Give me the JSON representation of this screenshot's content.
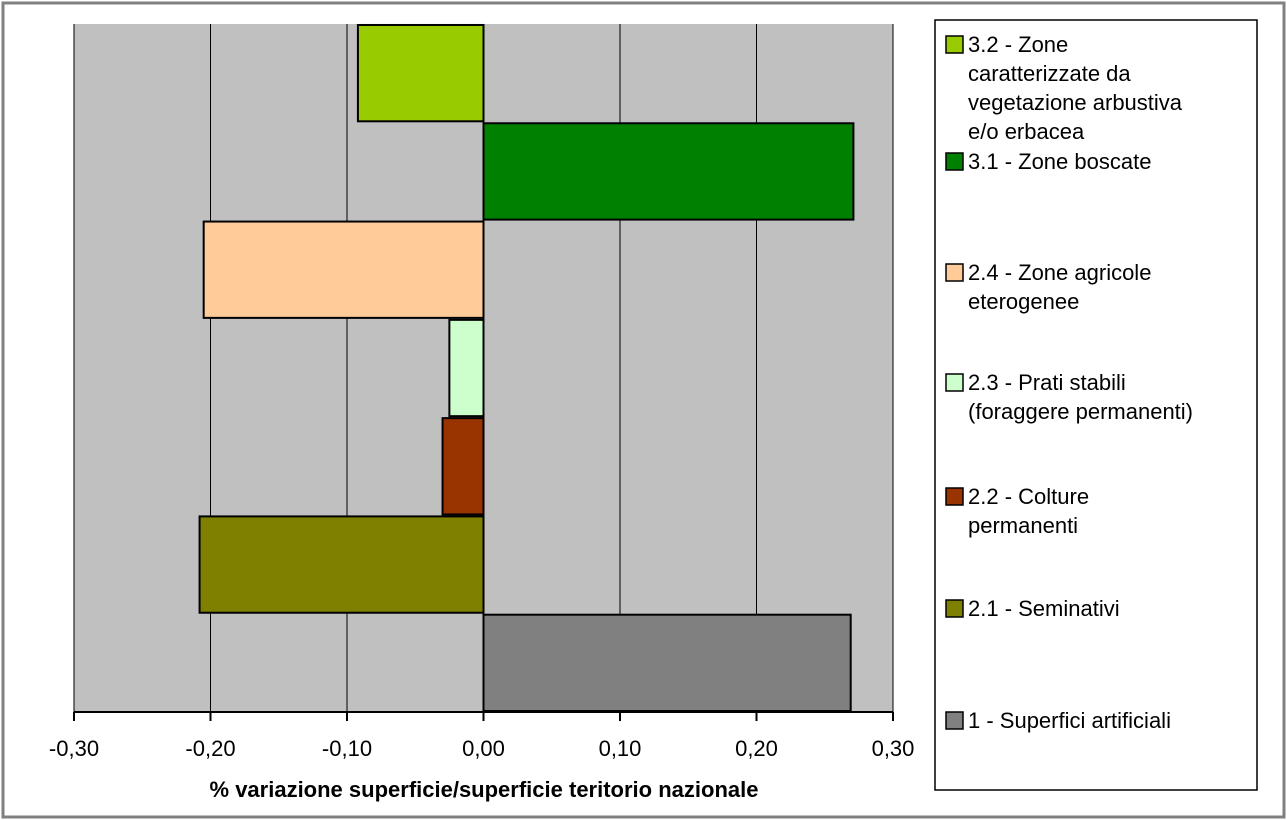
{
  "chart_data": {
    "type": "bar",
    "orientation": "horizontal",
    "xlabel": "% variazione superficie/superficie teritorio nazionale",
    "xlim": [
      -0.3,
      0.3
    ],
    "x_ticks": [
      "-0,30",
      "-0,20",
      "-0,10",
      "0,00",
      "0,10",
      "0,20",
      "0,30"
    ],
    "grid": true,
    "legend_position": "right",
    "series": [
      {
        "name": "1 - Superfici artificiali",
        "value": 0.269,
        "color": "#808080"
      },
      {
        "name": "2.1 - Seminativi",
        "value": -0.208,
        "color": "#808000"
      },
      {
        "name": "2.2 - Colture permanenti",
        "value": -0.03,
        "color": "#993300"
      },
      {
        "name": "2.3 - Prati stabili (foraggere permanenti)",
        "value": -0.025,
        "color": "#CCFFCC"
      },
      {
        "name": "2.4 - Zone agricole eterogenee",
        "value": -0.205,
        "color": "#FFCC99"
      },
      {
        "name": "3.1 - Zone boscate",
        "value": 0.271,
        "color": "#008000"
      },
      {
        "name": "3.2 - Zone caratterizzate da vegetazione arbustiva e/o erbacea",
        "value": -0.092,
        "color": "#99CC00"
      }
    ],
    "plot_background": "#C0C0C0"
  }
}
